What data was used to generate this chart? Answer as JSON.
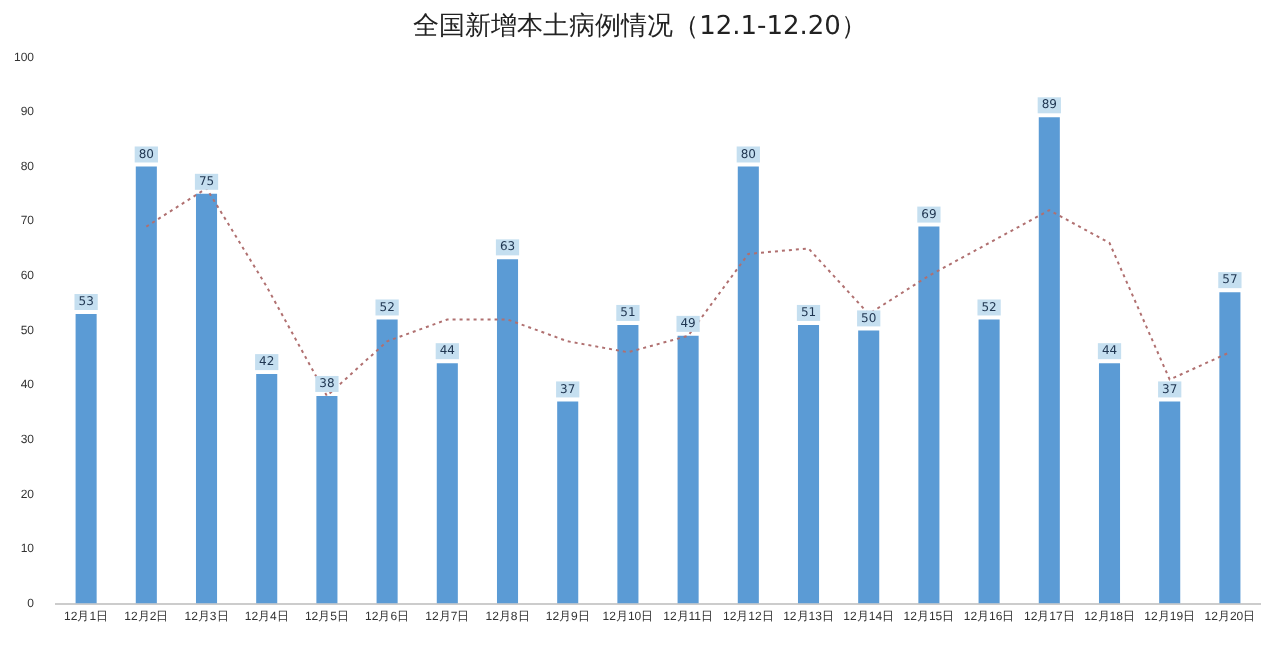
{
  "chart_data": {
    "type": "bar",
    "title": "全国新增本土病例情况（12.1-12.20）",
    "categories": [
      "12月1日",
      "12月2日",
      "12月3日",
      "12月4日",
      "12月5日",
      "12月6日",
      "12月7日",
      "12月8日",
      "12月9日",
      "12月10日",
      "12月11日",
      "12月12日",
      "12月13日",
      "12月14日",
      "12月15日",
      "12月16日",
      "12月17日",
      "12月18日",
      "12月19日",
      "12月20日"
    ],
    "series": [
      {
        "color": "#5b9bd5",
        "values": [
          53,
          80,
          75,
          42,
          38,
          52,
          44,
          63,
          37,
          51,
          49,
          80,
          51,
          50,
          69,
          52,
          89,
          44,
          37,
          57
        ],
        "value_labels": [
          "53",
          "80",
          "75",
          "42",
          "38",
          "52",
          "44",
          "63",
          "37",
          "51",
          "49",
          "80",
          "51",
          "50",
          "69",
          "52",
          "89",
          "44",
          "37",
          "57"
        ]
      },
      {
        "type": "line",
        "color": "#b07070",
        "values": [
          null,
          69,
          76,
          58,
          38,
          48,
          52,
          52,
          48,
          46,
          49,
          64,
          65,
          53,
          60,
          66,
          72,
          66,
          41,
          46
        ]
      }
    ],
    "ylim": [
      0,
      100
    ],
    "yticks": [
      0,
      10,
      20,
      30,
      40,
      50,
      60,
      70,
      80,
      90,
      100
    ],
    "grid": false,
    "legend": false,
    "line_style": "dotted",
    "marker": "none"
  }
}
